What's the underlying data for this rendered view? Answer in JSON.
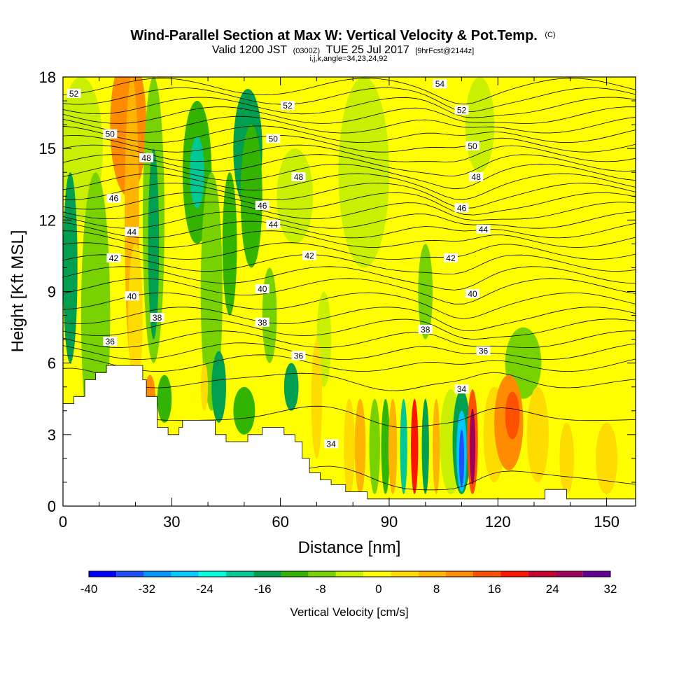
{
  "chart_data": {
    "type": "heatmap",
    "title": "Wind-Parallel Section at Max W: Vertical Velocity & Pot.Temp.",
    "title_mark": "(C)",
    "subtitle_parts": [
      "Valid 1200 JST",
      "(0300Z)",
      "TUE 25 Jul 2017",
      "[9hrFcst@2144z]"
    ],
    "subtitle2": "i,j,k,angle=34,23,24,92",
    "xlabel": "Distance [nm]",
    "ylabel": "Height [Kft MSL]",
    "xlim": [
      0,
      158
    ],
    "ylim": [
      0,
      18
    ],
    "x_ticks": [
      "0",
      "30",
      "60",
      "90",
      "120",
      "150"
    ],
    "y_ticks": [
      "0",
      "3",
      "6",
      "9",
      "12",
      "15",
      "18"
    ],
    "colorbar": {
      "title": "Vertical Velocity [cm/s]",
      "levels": [
        -40,
        -36,
        -32,
        -28,
        -24,
        -20,
        -16,
        -12,
        -8,
        -4,
        0,
        4,
        8,
        12,
        16,
        20,
        24,
        28,
        32
      ],
      "tick_labels": [
        "-40",
        "-32",
        "-24",
        "-16",
        "-8",
        "0",
        "8",
        "16",
        "24",
        "32"
      ],
      "colors": [
        "#0000ff",
        "#1e50ff",
        "#0096ff",
        "#00c8ff",
        "#00ffdc",
        "#00c896",
        "#00a050",
        "#32b400",
        "#78d200",
        "#c8f000",
        "#ffff00",
        "#ffdc00",
        "#ffb400",
        "#ff8c00",
        "#ff5000",
        "#ff1400",
        "#c80032",
        "#a0005a",
        "#640096"
      ]
    },
    "theta_labels": [
      {
        "text": "52",
        "x": 3,
        "y": 17.3
      },
      {
        "text": "50",
        "x": 13,
        "y": 15.6
      },
      {
        "text": "48",
        "x": 23,
        "y": 14.6
      },
      {
        "text": "46",
        "x": 14,
        "y": 12.9
      },
      {
        "text": "44",
        "x": 19,
        "y": 11.5
      },
      {
        "text": "42",
        "x": 14,
        "y": 10.4
      },
      {
        "text": "40",
        "x": 19,
        "y": 8.8
      },
      {
        "text": "38",
        "x": 26,
        "y": 7.9
      },
      {
        "text": "36",
        "x": 13,
        "y": 6.9
      },
      {
        "text": "54",
        "x": 104,
        "y": 17.7
      },
      {
        "text": "52",
        "x": 62,
        "y": 16.8
      },
      {
        "text": "52",
        "x": 110,
        "y": 16.6
      },
      {
        "text": "50",
        "x": 58,
        "y": 15.4
      },
      {
        "text": "50",
        "x": 113,
        "y": 15.1
      },
      {
        "text": "48",
        "x": 65,
        "y": 13.8
      },
      {
        "text": "48",
        "x": 114,
        "y": 13.8
      },
      {
        "text": "46",
        "x": 55,
        "y": 12.6
      },
      {
        "text": "46",
        "x": 110,
        "y": 12.5
      },
      {
        "text": "44",
        "x": 58,
        "y": 11.8
      },
      {
        "text": "44",
        "x": 116,
        "y": 11.6
      },
      {
        "text": "42",
        "x": 68,
        "y": 10.5
      },
      {
        "text": "42",
        "x": 107,
        "y": 10.4
      },
      {
        "text": "40",
        "x": 55,
        "y": 9.1
      },
      {
        "text": "40",
        "x": 113,
        "y": 8.9
      },
      {
        "text": "38",
        "x": 55,
        "y": 7.7
      },
      {
        "text": "38",
        "x": 100,
        "y": 7.4
      },
      {
        "text": "36",
        "x": 65,
        "y": 6.3
      },
      {
        "text": "36",
        "x": 116,
        "y": 6.5
      },
      {
        "text": "34",
        "x": 110,
        "y": 4.9
      },
      {
        "text": "34",
        "x": 74,
        "y": 2.6
      }
    ],
    "terrain": [
      [
        0,
        4.3
      ],
      [
        3,
        4.3
      ],
      [
        3,
        4.6
      ],
      [
        6,
        4.6
      ],
      [
        6,
        5.3
      ],
      [
        9,
        5.3
      ],
      [
        9,
        5.6
      ],
      [
        12,
        5.6
      ],
      [
        12,
        5.9
      ],
      [
        22,
        5.9
      ],
      [
        22,
        5.3
      ],
      [
        23,
        5.3
      ],
      [
        23,
        4.6
      ],
      [
        26,
        4.6
      ],
      [
        26,
        3.3
      ],
      [
        29,
        3.3
      ],
      [
        29,
        3.0
      ],
      [
        32,
        3.0
      ],
      [
        32,
        3.3
      ],
      [
        33,
        3.3
      ],
      [
        33,
        3.6
      ],
      [
        42,
        3.6
      ],
      [
        42,
        3.0
      ],
      [
        45,
        3.0
      ],
      [
        45,
        2.7
      ],
      [
        51,
        2.7
      ],
      [
        51,
        3.0
      ],
      [
        55,
        3.0
      ],
      [
        55,
        3.3
      ],
      [
        61,
        3.3
      ],
      [
        61,
        3.0
      ],
      [
        64,
        3.0
      ],
      [
        64,
        2.7
      ],
      [
        66,
        2.7
      ],
      [
        66,
        2.0
      ],
      [
        68,
        2.0
      ],
      [
        68,
        1.4
      ],
      [
        71,
        1.4
      ],
      [
        71,
        1.1
      ],
      [
        74,
        1.1
      ],
      [
        74,
        0.9
      ],
      [
        78,
        0.9
      ],
      [
        78,
        0.6
      ],
      [
        84,
        0.6
      ],
      [
        84,
        0.3
      ],
      [
        133,
        0.3
      ],
      [
        133,
        0.7
      ],
      [
        139,
        0.7
      ],
      [
        139,
        0.3
      ],
      [
        158,
        0.3
      ],
      [
        158,
        0
      ]
    ]
  }
}
